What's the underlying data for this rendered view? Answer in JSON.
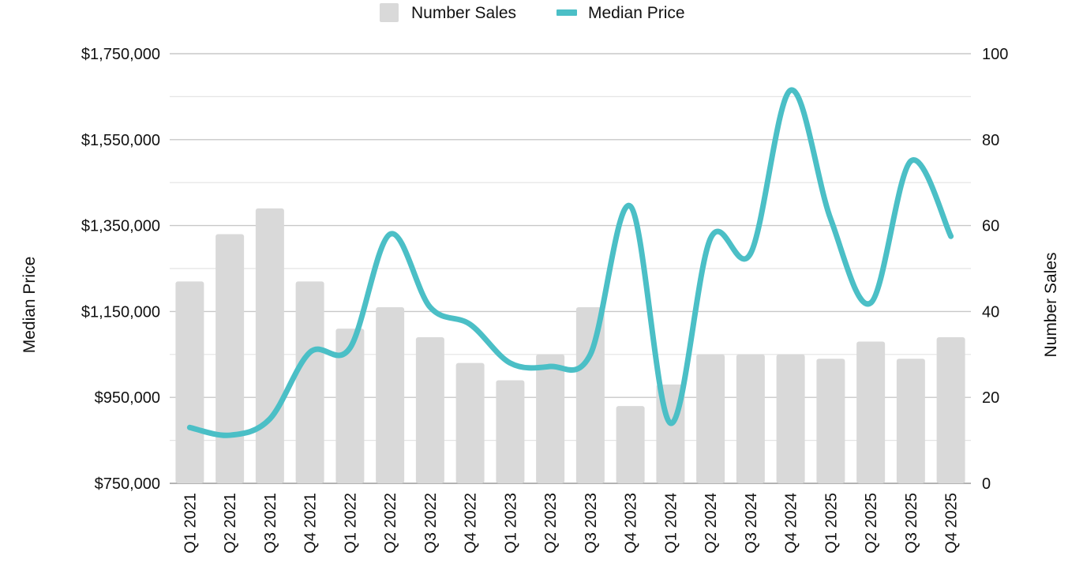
{
  "chart_data": {
    "type": "bar",
    "categories": [
      "Q1 2021",
      "Q2 2021",
      "Q3 2021",
      "Q4 2021",
      "Q1 2022",
      "Q2 2022",
      "Q3 2022",
      "Q4 2022",
      "Q1 2023",
      "Q2 2023",
      "Q3 2023",
      "Q4 2023",
      "Q1 2024",
      "Q2 2024",
      "Q3 2024",
      "Q4 2024",
      "Q1 2025",
      "Q2 2025",
      "Q3 2025",
      "Q4 2025"
    ],
    "series": [
      {
        "name": "Number Sales",
        "kind": "bar",
        "axis": "right",
        "color": "#d9d9d9",
        "values": [
          47,
          58,
          64,
          47,
          36,
          41,
          34,
          28,
          24,
          30,
          41,
          18,
          23,
          30,
          30,
          30,
          29,
          33,
          29,
          34
        ]
      },
      {
        "name": "Median Price",
        "kind": "line",
        "axis": "left",
        "color": "#4bbfc6",
        "values": [
          880000,
          862000,
          900000,
          1055000,
          1065000,
          1330000,
          1160000,
          1120000,
          1030000,
          1022000,
          1050000,
          1395000,
          890000,
          1320000,
          1285000,
          1665000,
          1365000,
          1170000,
          1500000,
          1325000
        ]
      }
    ],
    "y_left": {
      "label": "Median Price",
      "ylim": [
        750000,
        1750000
      ],
      "ticks": [
        750000,
        950000,
        1150000,
        1350000,
        1550000,
        1750000
      ],
      "tick_labels": [
        "$750,000",
        "$950,000",
        "$1,150,000",
        "$1,350,000",
        "$1,550,000",
        "$1,750,000"
      ]
    },
    "y_right": {
      "label": "Number Sales",
      "ylim": [
        0,
        100
      ],
      "ticks": [
        0,
        20,
        40,
        60,
        80,
        100
      ],
      "tick_labels": [
        "0",
        "20",
        "40",
        "60",
        "80",
        "100"
      ]
    },
    "grid": true,
    "legend": {
      "position": "top-center",
      "items": [
        "Number Sales",
        "Median Price"
      ]
    }
  }
}
